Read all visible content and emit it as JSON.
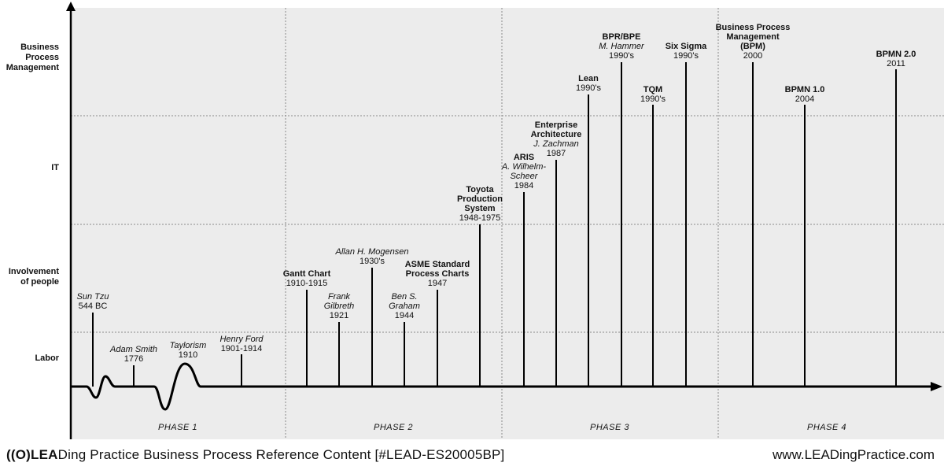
{
  "y_axis_labels": [
    "Business\nProcess\nManagement",
    "IT",
    "Involvement\nof people",
    "Labor"
  ],
  "phases": [
    "PHASE 1",
    "PHASE 2",
    "PHASE 3",
    "PHASE 4"
  ],
  "events": [
    {
      "title": "",
      "author": "Sun Tzu",
      "date": "544 BC"
    },
    {
      "title": "",
      "author": "Adam Smith",
      "date": "1776"
    },
    {
      "title": "",
      "author": "Taylorism",
      "date": "1910"
    },
    {
      "title": "",
      "author": "Henry Ford",
      "date": "1901-1914"
    },
    {
      "title": "Gantt Chart",
      "author": "",
      "date": "1910-1915"
    },
    {
      "title": "",
      "author": "Frank\nGilbreth",
      "date": "1921"
    },
    {
      "title": "",
      "author": "Allan H. Mogensen",
      "date": "1930's"
    },
    {
      "title": "",
      "author": "Ben S.\nGraham",
      "date": "1944"
    },
    {
      "title": "ASME Standard\nProcess Charts",
      "author": "",
      "date": "1947"
    },
    {
      "title": "Toyota\nProduction\nSystem",
      "author": "",
      "date": "1948-1975"
    },
    {
      "title": "ARIS",
      "author": "A. Wilhelm-\nScheer",
      "date": "1984"
    },
    {
      "title": "Enterprise\nArchitecture",
      "author": "J. Zachman",
      "date": "1987"
    },
    {
      "title": "Lean",
      "author": "",
      "date": "1990's"
    },
    {
      "title": "BPR/BPE",
      "author": "M. Hammer",
      "date": "1990's"
    },
    {
      "title": "TQM",
      "author": "",
      "date": "1990's"
    },
    {
      "title": "Six Sigma",
      "author": "",
      "date": "1990's"
    },
    {
      "title": "Business Process\nManagement\n(BPM)",
      "author": "",
      "date": "2000"
    },
    {
      "title": "BPMN 1.0",
      "author": "",
      "date": "2004"
    },
    {
      "title": "BPMN 2.0",
      "author": "",
      "date": "2011"
    }
  ],
  "footer": {
    "brand_mark": "((O)LEA",
    "left_text": "Ding Practice Business Process Reference Content [#LEAD-ES20005BP]",
    "right_text": "www.LEADingPractice.com"
  },
  "colors": {
    "background": "#ececec",
    "line": "#000000",
    "grid": "#8a8a8a"
  }
}
